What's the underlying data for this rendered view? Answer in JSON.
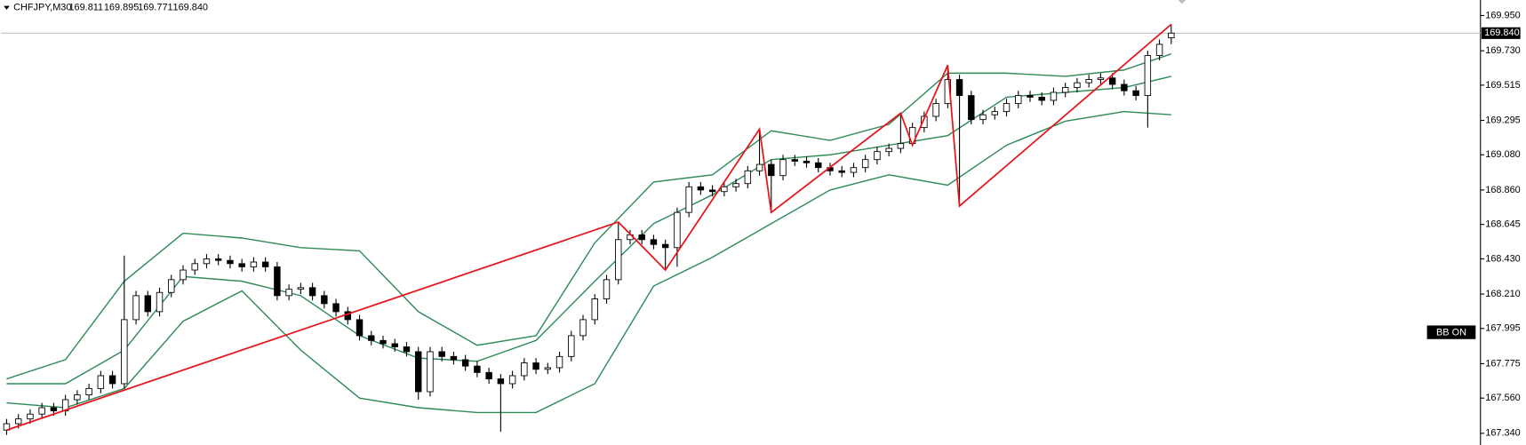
{
  "chart_data": {
    "type": "candlestick",
    "title": "CHFJPY,M30",
    "ohlc_labels": [
      "169.811",
      "169.895",
      "169.771",
      "169.840"
    ],
    "annotation": "BB ON",
    "last_price": {
      "value": 169.84,
      "label": "169.840"
    },
    "ylim": [
      167.267,
      170.047
    ],
    "yticks": [
      {
        "value": 169.95,
        "label": "169.950"
      },
      {
        "value": 169.73,
        "label": "169.730"
      },
      169.515,
      169.295,
      {
        "value": 169.08,
        "label": "169.080"
      },
      {
        "value": 168.86,
        "label": "168.860"
      },
      168.645,
      {
        "value": 168.43,
        "label": "168.430"
      },
      {
        "value": 168.21,
        "label": "168.210"
      },
      167.995,
      167.775,
      {
        "value": 167.56,
        "label": "167.560"
      },
      {
        "value": 167.34,
        "label": "167.340"
      }
    ],
    "up_color": "#ffffff",
    "down_color": "#000000",
    "open": [
      167.36,
      167.4,
      167.43,
      167.46,
      167.5,
      167.48,
      167.55,
      167.58,
      167.62,
      167.7,
      167.65,
      168.05,
      168.2,
      168.1,
      168.22,
      168.3,
      168.36,
      168.4,
      168.43,
      168.42,
      168.4,
      168.38,
      168.41,
      168.38,
      168.2,
      168.24,
      168.25,
      168.2,
      168.15,
      168.1,
      168.05,
      167.95,
      167.92,
      167.9,
      167.88,
      167.85,
      167.6,
      167.85,
      167.82,
      167.8,
      167.76,
      167.72,
      167.68,
      167.65,
      167.7,
      167.78,
      167.74,
      167.75,
      167.82,
      167.95,
      168.05,
      168.18,
      168.3,
      168.55,
      168.58,
      168.55,
      168.52,
      168.5,
      168.72,
      168.88,
      168.86,
      168.85,
      168.88,
      168.9,
      168.98,
      169.02,
      168.95,
      169.05,
      169.04,
      169.03,
      169.0,
      168.98,
      168.97,
      169.0,
      169.05,
      169.1,
      169.12,
      169.15,
      169.25,
      169.32,
      169.4,
      169.55,
      169.45,
      169.3,
      169.33,
      169.35,
      169.4,
      169.45,
      169.44,
      169.42,
      169.47,
      169.5,
      169.53,
      169.55,
      169.56,
      169.52,
      169.48,
      169.45,
      169.7,
      169.811
    ],
    "high": [
      167.43,
      167.46,
      167.49,
      167.53,
      167.53,
      167.58,
      167.61,
      167.65,
      167.73,
      167.73,
      168.45,
      168.23,
      168.23,
      168.25,
      168.33,
      168.39,
      168.43,
      168.46,
      168.46,
      168.45,
      168.43,
      168.44,
      168.44,
      168.41,
      168.27,
      168.28,
      168.28,
      168.23,
      168.18,
      168.13,
      168.08,
      167.98,
      167.95,
      167.93,
      167.91,
      167.88,
      167.88,
      167.88,
      167.85,
      167.83,
      167.79,
      167.75,
      167.71,
      167.73,
      167.81,
      167.81,
      167.78,
      167.85,
      167.98,
      168.08,
      168.21,
      168.33,
      168.66,
      168.61,
      168.61,
      168.58,
      168.55,
      168.75,
      168.91,
      168.91,
      168.89,
      168.91,
      168.93,
      169.01,
      169.24,
      169.05,
      169.08,
      169.08,
      169.07,
      169.06,
      169.03,
      169.01,
      169.03,
      169.08,
      169.13,
      169.15,
      169.34,
      169.28,
      169.35,
      169.43,
      169.64,
      169.58,
      169.48,
      169.36,
      169.38,
      169.43,
      169.48,
      169.48,
      169.47,
      169.5,
      169.53,
      169.56,
      169.58,
      169.59,
      169.59,
      169.55,
      169.51,
      169.73,
      169.8,
      169.895
    ],
    "low": [
      167.33,
      167.37,
      167.4,
      167.43,
      167.45,
      167.45,
      167.52,
      167.55,
      167.59,
      167.62,
      167.62,
      168.02,
      168.07,
      168.07,
      168.19,
      168.27,
      168.33,
      168.37,
      168.39,
      168.37,
      168.35,
      168.35,
      168.35,
      168.17,
      168.17,
      168.21,
      168.17,
      168.12,
      168.07,
      168.02,
      167.92,
      167.89,
      167.87,
      167.85,
      167.82,
      167.55,
      167.57,
      167.79,
      167.77,
      167.73,
      167.69,
      167.65,
      167.35,
      167.62,
      167.67,
      167.71,
      167.71,
      167.72,
      167.79,
      167.92,
      168.02,
      168.15,
      168.27,
      168.52,
      168.52,
      168.49,
      168.36,
      168.38,
      168.69,
      168.83,
      168.82,
      168.82,
      168.85,
      168.87,
      168.95,
      168.72,
      168.92,
      169.01,
      169.0,
      168.97,
      168.95,
      168.94,
      168.94,
      168.97,
      169.02,
      169.07,
      169.09,
      169.14,
      169.22,
      169.29,
      169.37,
      168.76,
      169.27,
      169.27,
      169.3,
      169.32,
      169.37,
      169.41,
      169.39,
      169.39,
      169.44,
      169.47,
      169.5,
      169.52,
      169.49,
      169.45,
      169.42,
      169.25,
      169.67,
      169.771
    ],
    "close": [
      167.4,
      167.43,
      167.46,
      167.5,
      167.48,
      167.55,
      167.58,
      167.62,
      167.7,
      167.65,
      168.05,
      168.2,
      168.1,
      168.22,
      168.3,
      168.36,
      168.4,
      168.43,
      168.42,
      168.4,
      168.38,
      168.41,
      168.38,
      168.2,
      168.24,
      168.25,
      168.2,
      168.15,
      168.1,
      168.05,
      167.95,
      167.92,
      167.9,
      167.88,
      167.85,
      167.6,
      167.85,
      167.82,
      167.8,
      167.76,
      167.72,
      167.68,
      167.65,
      167.7,
      167.78,
      167.74,
      167.75,
      167.82,
      167.95,
      168.05,
      168.18,
      168.3,
      168.55,
      168.58,
      168.55,
      168.52,
      168.5,
      168.72,
      168.88,
      168.86,
      168.85,
      168.88,
      168.9,
      168.98,
      169.02,
      168.95,
      169.05,
      169.04,
      169.03,
      169.0,
      168.98,
      168.97,
      169.0,
      169.05,
      169.1,
      169.12,
      169.15,
      169.25,
      169.32,
      169.4,
      169.55,
      169.45,
      169.3,
      169.33,
      169.35,
      169.4,
      169.45,
      169.44,
      169.42,
      169.47,
      169.5,
      169.53,
      169.55,
      169.56,
      169.52,
      169.48,
      169.45,
      169.7,
      169.77,
      169.84
    ],
    "bands": {
      "color": "#2e8b57",
      "x": [
        0,
        5,
        10,
        15,
        20,
        25,
        30,
        35,
        40,
        45,
        50,
        55,
        60,
        65,
        70,
        75,
        80,
        85,
        90,
        95,
        99
      ],
      "lines": [
        [
          167.68,
          167.8,
          168.29,
          168.59,
          168.56,
          168.5,
          168.48,
          168.1,
          167.89,
          167.95,
          168.53,
          168.91,
          168.955,
          169.23,
          169.17,
          169.27,
          169.59,
          169.59,
          169.57,
          169.61,
          169.71
        ],
        [
          167.65,
          167.65,
          167.86,
          168.32,
          168.29,
          168.2,
          167.95,
          167.81,
          167.79,
          167.92,
          168.29,
          168.65,
          168.83,
          169.05,
          169.08,
          169.14,
          169.2,
          169.44,
          169.47,
          169.5,
          169.57
        ],
        [
          167.53,
          167.5,
          167.62,
          168.04,
          168.23,
          167.86,
          167.56,
          167.5,
          167.47,
          167.47,
          167.65,
          168.26,
          168.44,
          168.65,
          168.86,
          168.955,
          168.89,
          169.14,
          169.29,
          169.35,
          169.33
        ]
      ]
    },
    "zigzag": {
      "color": "#e8141c",
      "x": [
        0,
        52,
        56,
        64,
        65,
        76,
        77,
        80,
        81,
        99
      ],
      "values": [
        167.36,
        168.66,
        168.36,
        169.24,
        168.72,
        169.34,
        169.14,
        169.64,
        168.76,
        169.895
      ]
    }
  }
}
